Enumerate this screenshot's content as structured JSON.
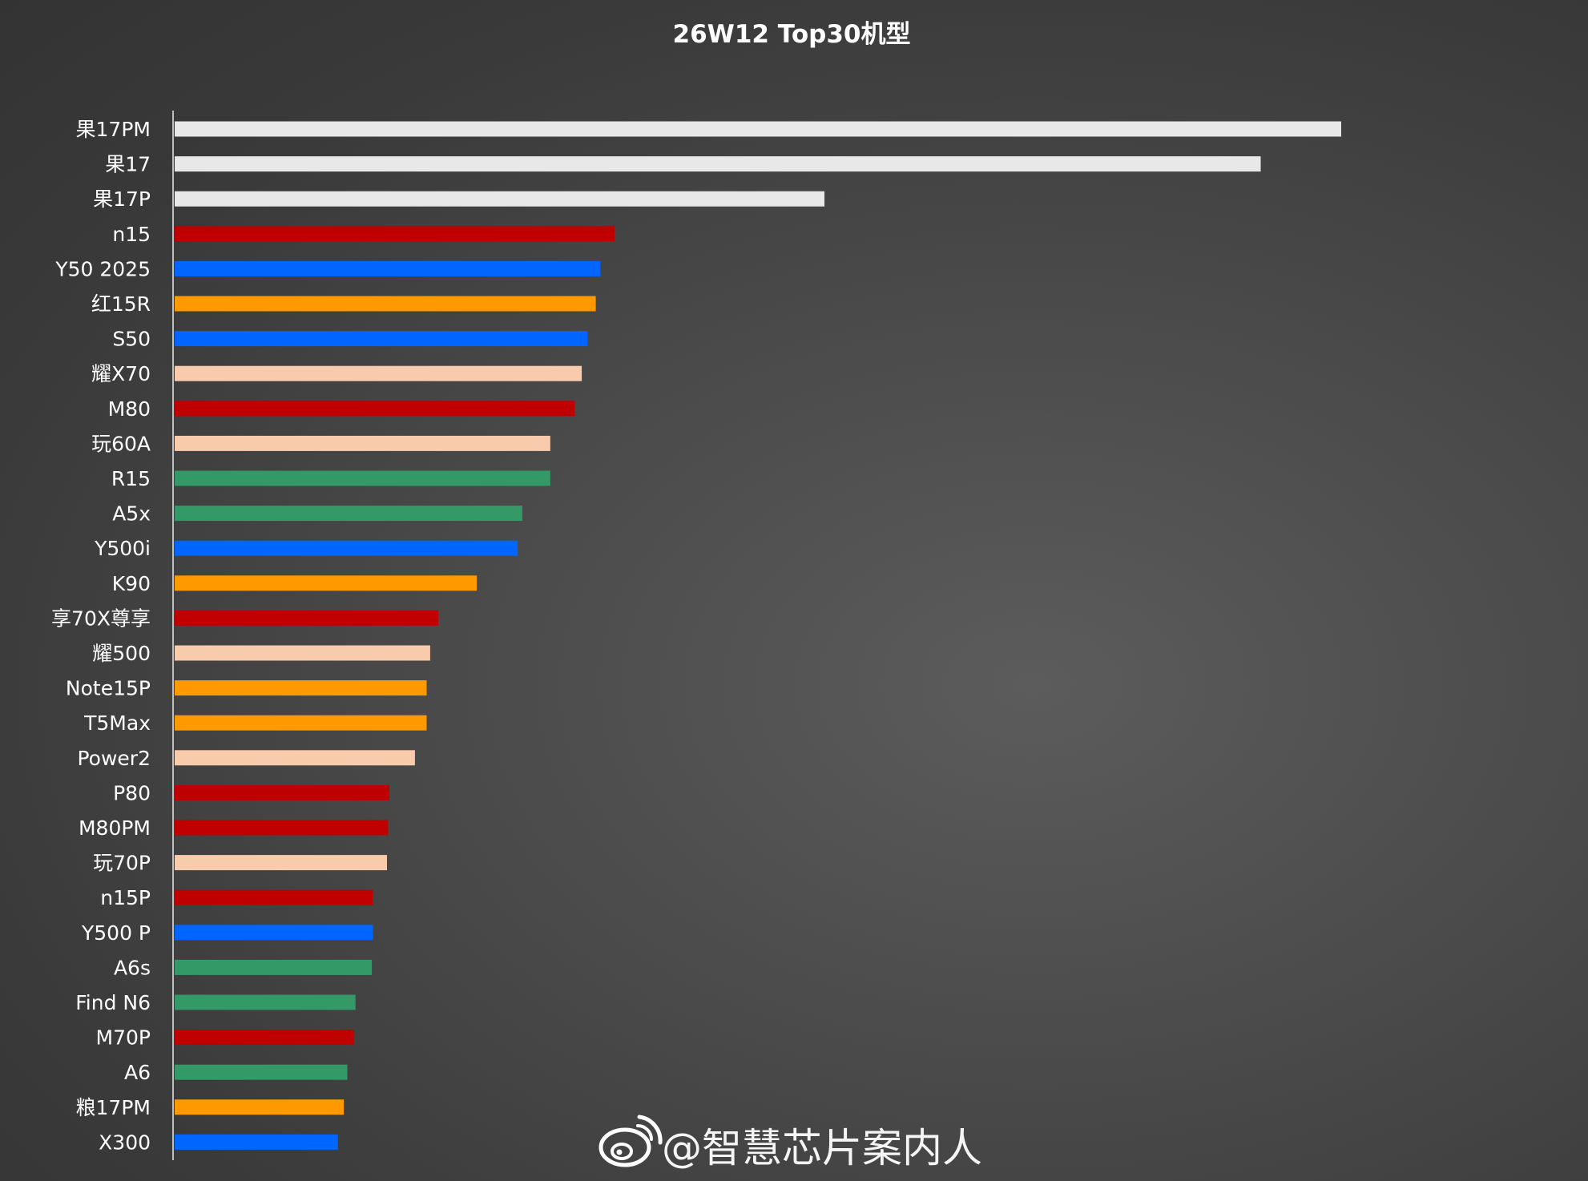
{
  "chart_data": {
    "type": "bar",
    "orientation": "horizontal",
    "title": "26W12 Top30机型",
    "xlabel": "",
    "ylabel": "",
    "xlim": [
      0,
      100
    ],
    "grid": false,
    "legend": "none",
    "categories": [
      "果17PM",
      "果17",
      "果17P",
      "n15",
      "Y50 2025",
      "红15R",
      "S50",
      "耀X70",
      "M80",
      "玩60A",
      "R15",
      "A5x",
      "Y500i",
      "K90",
      "享70X尊享",
      "耀500",
      "Note15P",
      "T5Max",
      "Power2",
      "P80",
      "M80PM",
      "玩70P",
      "n15P",
      "Y500 P",
      "A6s",
      "Find N6",
      "M70P",
      "A6",
      "粮17PM",
      "X300"
    ],
    "values": [
      100,
      93.1,
      55.7,
      37.7,
      36.5,
      36.1,
      35.4,
      34.9,
      34.3,
      32.2,
      32.2,
      29.8,
      29.4,
      25.9,
      22.6,
      21.9,
      21.6,
      21.6,
      20.6,
      18.4,
      18.3,
      18.2,
      17.0,
      17.0,
      16.9,
      15.5,
      15.4,
      14.8,
      14.5,
      14.0
    ],
    "bar_colors": [
      "#e8e8e8",
      "#e8e8e8",
      "#e8e8e8",
      "#c00000",
      "#0066ff",
      "#ff9900",
      "#0066ff",
      "#f8cbad",
      "#c00000",
      "#f8cbad",
      "#339966",
      "#339966",
      "#0066ff",
      "#ff9900",
      "#c00000",
      "#f8cbad",
      "#ff9900",
      "#ff9900",
      "#f8cbad",
      "#c00000",
      "#c00000",
      "#f8cbad",
      "#c00000",
      "#0066ff",
      "#339966",
      "#339966",
      "#c00000",
      "#339966",
      "#ff9900",
      "#0066ff"
    ]
  },
  "watermark": {
    "icon": "weibo-logo-icon",
    "text": "@智慧芯片案内人"
  }
}
